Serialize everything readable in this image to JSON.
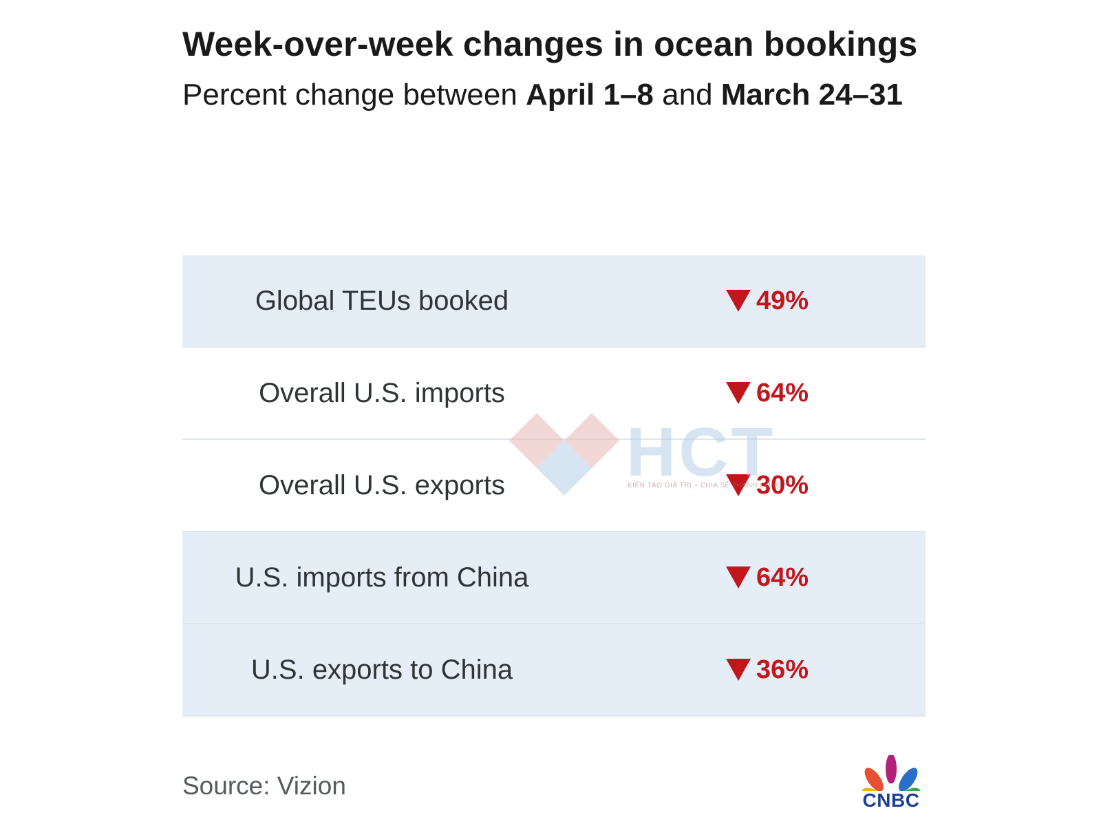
{
  "chart_data": {
    "type": "table",
    "title": "Week-over-week changes in ocean bookings",
    "subtitle": {
      "prefix": "Percent change between ",
      "bold1": "April 1–8",
      "middle": " and ",
      "bold2": "March 24–31"
    },
    "rows": [
      {
        "label": "Global TEUs booked",
        "value": -49,
        "display": "49%",
        "direction": "down",
        "shaded": true
      },
      {
        "label": "Overall U.S. imports",
        "value": -64,
        "display": "64%",
        "direction": "down",
        "shaded": false
      },
      {
        "label": "Overall U.S. exports",
        "value": -30,
        "display": "30%",
        "direction": "down",
        "shaded": false
      },
      {
        "label": "U.S. imports from China",
        "value": -64,
        "display": "64%",
        "direction": "down",
        "shaded": true
      },
      {
        "label": "U.S. exports to China",
        "value": -36,
        "display": "36%",
        "direction": "down",
        "shaded": true
      }
    ],
    "source": "Source: Vizion"
  },
  "logo": {
    "name": "cnbc-peacock-logo",
    "text": "CNBC"
  },
  "watermark": {
    "name": "hct-watermark",
    "text": "HCT",
    "tagline": "KIẾN TẠO GIÁ TRỊ – CHIA SẺ THÀNH CÔNG"
  },
  "colors": {
    "accent": "#c0171d",
    "row_shade": "#e5eef6",
    "brand_blue": "#1c3f94"
  }
}
